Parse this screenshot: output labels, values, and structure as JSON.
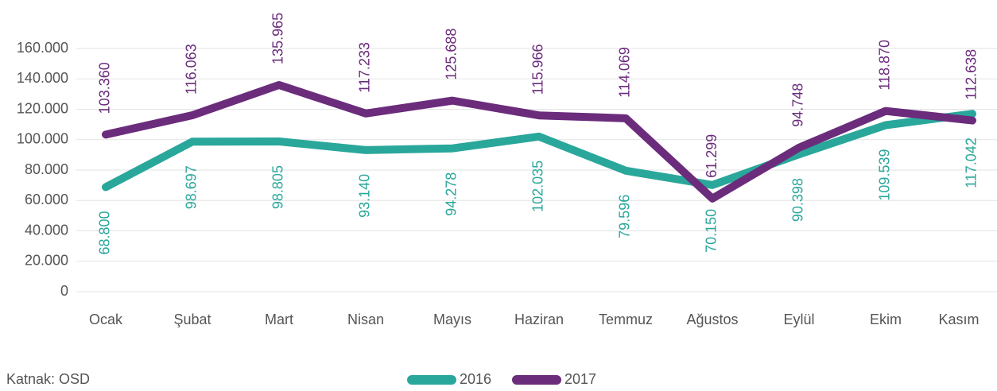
{
  "chart_data": {
    "type": "line",
    "categories": [
      "Ocak",
      "Şubat",
      "Mart",
      "Nisan",
      "Mayıs",
      "Haziran",
      "Temmuz",
      "Ağustos",
      "Eylül",
      "Ekim",
      "Kasım"
    ],
    "series": [
      {
        "name": "2016",
        "color": "#2aa79b",
        "label_side": "below",
        "values": [
          68800,
          98697,
          98805,
          93140,
          94278,
          102035,
          79596,
          70150,
          90398,
          109539,
          117042
        ],
        "value_labels": [
          "68.800",
          "98.697",
          "98.805",
          "93.140",
          "94.278",
          "102.035",
          "79.596",
          "70.150",
          "90.398",
          "109.539",
          "117.042"
        ]
      },
      {
        "name": "2017",
        "color": "#6b2c7c",
        "label_side": "above",
        "values": [
          103360,
          116063,
          135965,
          117233,
          125688,
          115966,
          114069,
          61299,
          94748,
          118870,
          112638
        ],
        "value_labels": [
          "103.360",
          "116.063",
          "135.965",
          "117.233",
          "125.688",
          "115.966",
          "114.069",
          "61.299",
          "94.748",
          "118.870",
          "112.638"
        ]
      }
    ],
    "ylim": [
      0,
      160000
    ],
    "yticks": [
      0,
      {
        "value": 20000,
        "label": "20.000"
      },
      {
        "value": 40000,
        "label": "40.000"
      },
      {
        "value": 60000,
        "label": "60.000"
      },
      {
        "value": 80000,
        "label": "80.000"
      },
      {
        "value": 100000,
        "label": "100.000"
      },
      {
        "value": 120000,
        "label": "120.000"
      },
      {
        "value": 140000,
        "label": "140.000"
      },
      {
        "value": 160000,
        "label": "160.000"
      }
    ],
    "grid": true,
    "source": "Katnak: OSD",
    "legend": "bottom"
  }
}
